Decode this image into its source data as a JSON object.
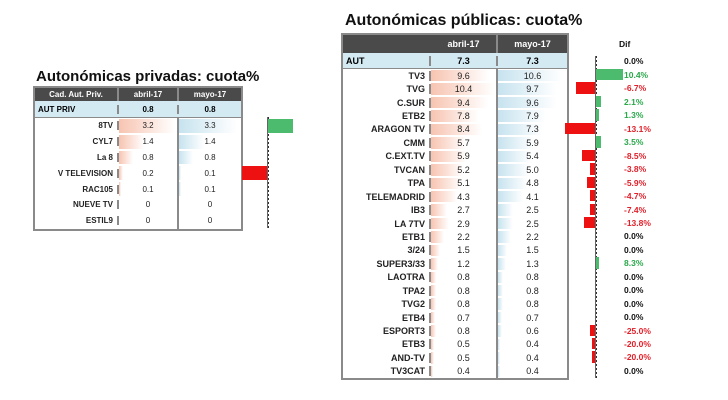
{
  "privadas": {
    "title": "Autonómicas privadas: cuota%",
    "headers": [
      "Cad. Aut. Priv.",
      "abril-17",
      "mayo-17"
    ],
    "total": {
      "name": "AUT PRIV",
      "abril": "0.8",
      "mayo": "0.8"
    },
    "rows": [
      {
        "name": "8TV",
        "abril": "3.2",
        "mayo": "3.3"
      },
      {
        "name": "CYL7",
        "abril": "1.4",
        "mayo": "1.4"
      },
      {
        "name": "La 8",
        "abril": "0.8",
        "mayo": "0.8"
      },
      {
        "name": "V TELEVISION",
        "abril": "0.2",
        "mayo": "0.1"
      },
      {
        "name": "RAC105",
        "abril": "0.1",
        "mayo": "0.1"
      },
      {
        "name": "NUEVE TV",
        "abril": "0",
        "mayo": "0"
      },
      {
        "name": "ESTIL9",
        "abril": "0",
        "mayo": "0"
      }
    ]
  },
  "publicas": {
    "title": "Autonómicas públicas: cuota%",
    "headers": [
      "",
      "abril-17",
      "mayo-17"
    ],
    "dif_label": "Dif",
    "total": {
      "name": "AUT",
      "abril": "7.3",
      "mayo": "7.3",
      "dif": "0.0%"
    },
    "rows": [
      {
        "name": "TV3",
        "abril": "9.6",
        "mayo": "10.6",
        "dif": "10.4%"
      },
      {
        "name": "TVG",
        "abril": "10.4",
        "mayo": "9.7",
        "dif": "-6.7%"
      },
      {
        "name": "C.SUR",
        "abril": "9.4",
        "mayo": "9.6",
        "dif": "2.1%"
      },
      {
        "name": "ETB2",
        "abril": "7.8",
        "mayo": "7.9",
        "dif": "1.3%"
      },
      {
        "name": "ARAGON TV",
        "abril": "8.4",
        "mayo": "7.3",
        "dif": "-13.1%"
      },
      {
        "name": "CMM",
        "abril": "5.7",
        "mayo": "5.9",
        "dif": "3.5%"
      },
      {
        "name": "C.EXT.TV",
        "abril": "5.9",
        "mayo": "5.4",
        "dif": "-8.5%"
      },
      {
        "name": "TVCAN",
        "abril": "5.2",
        "mayo": "5.0",
        "dif": "-3.8%"
      },
      {
        "name": "TPA",
        "abril": "5.1",
        "mayo": "4.8",
        "dif": "-5.9%"
      },
      {
        "name": "TELEMADRID",
        "abril": "4.3",
        "mayo": "4.1",
        "dif": "-4.7%"
      },
      {
        "name": "IB3",
        "abril": "2.7",
        "mayo": "2.5",
        "dif": "-7.4%"
      },
      {
        "name": "LA 7TV",
        "abril": "2.9",
        "mayo": "2.5",
        "dif": "-13.8%"
      },
      {
        "name": "ETB1",
        "abril": "2.2",
        "mayo": "2.2",
        "dif": "0.0%"
      },
      {
        "name": "3/24",
        "abril": "1.5",
        "mayo": "1.5",
        "dif": "0.0%"
      },
      {
        "name": "SUPER3/33",
        "abril": "1.2",
        "mayo": "1.3",
        "dif": "8.3%"
      },
      {
        "name": "LAOTRA",
        "abril": "0.8",
        "mayo": "0.8",
        "dif": "0.0%"
      },
      {
        "name": "TPA2",
        "abril": "0.8",
        "mayo": "0.8",
        "dif": "0.0%"
      },
      {
        "name": "TVG2",
        "abril": "0.8",
        "mayo": "0.8",
        "dif": "0.0%"
      },
      {
        "name": "ETB4",
        "abril": "0.7",
        "mayo": "0.7",
        "dif": "0.0%"
      },
      {
        "name": "ESPORT3",
        "abril": "0.8",
        "mayo": "0.6",
        "dif": "-25.0%"
      },
      {
        "name": "ETB3",
        "abril": "0.5",
        "mayo": "0.4",
        "dif": "-20.0%"
      },
      {
        "name": "AND-TV",
        "abril": "0.5",
        "mayo": "0.4",
        "dif": "-20.0%"
      },
      {
        "name": "TV3CAT",
        "abril": "0.4",
        "mayo": "0.4",
        "dif": "0.0%"
      }
    ]
  },
  "colors": {
    "positive": "#4dbb6d",
    "negative": "#ee1111",
    "positive_text": "#2aa84a",
    "negative_text": "#e0202a",
    "header_bg": "#4a4a4a",
    "total_bg": "#d3eaf3"
  }
}
